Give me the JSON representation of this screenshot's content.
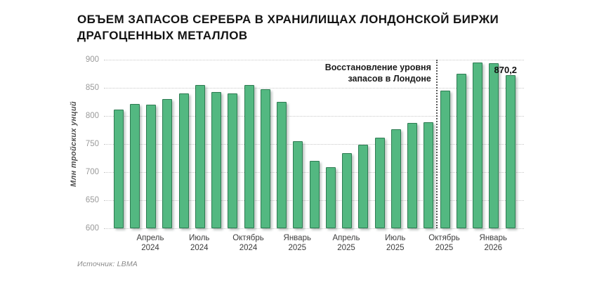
{
  "title": {
    "line1": "ОБЪЕМ ЗАПАСОВ СЕРЕБРА В ХРАНИЛИЩАХ ЛОНДОНСКОЙ БИРЖИ",
    "line2": "ДРАГОЦЕННЫХ МЕТАЛЛОВ"
  },
  "source": "Источник: LBMA",
  "colors": {
    "bar_fill": "#53b881",
    "bar_border": "#2e7b52",
    "gridline": "#c8c8c8",
    "divider": "#5a5a5a"
  },
  "chart_data": {
    "type": "bar",
    "title": "Объем запасов серебра в хранилищах лондонской биржи драгоценных металлов",
    "ylabel": "Млн тройских унций",
    "ylim": [
      600,
      900
    ],
    "yticks": [
      600,
      650,
      700,
      750,
      800,
      850,
      900
    ],
    "grid": "horizontal dotted",
    "legend": "none",
    "categories": [
      "2024-02",
      "2024-03",
      "2024-04",
      "2024-05",
      "2024-06",
      "2024-07",
      "2024-08",
      "2024-09",
      "2024-10",
      "2024-11",
      "2024-12",
      "2025-01",
      "2025-02",
      "2025-03",
      "2025-04",
      "2025-05",
      "2025-06",
      "2025-07",
      "2025-08",
      "2025-09",
      "2025-10",
      "2025-11",
      "2025-12",
      "2026-01",
      "2026-02"
    ],
    "values": [
      809,
      819,
      817,
      828,
      837,
      852,
      840,
      837,
      852,
      845,
      822,
      752,
      718,
      706,
      731,
      746,
      759,
      774,
      785,
      786,
      842,
      872,
      893,
      891,
      870.2
    ],
    "xticks": [
      {
        "index": 2,
        "line1": "Апрель",
        "line2": "2024"
      },
      {
        "index": 5,
        "line1": "Июль",
        "line2": "2024"
      },
      {
        "index": 8,
        "line1": "Октябрь",
        "line2": "2024"
      },
      {
        "index": 11,
        "line1": "Январь",
        "line2": "2025"
      },
      {
        "index": 14,
        "line1": "Апрель",
        "line2": "2025"
      },
      {
        "index": 17,
        "line1": "Июль",
        "line2": "2025"
      },
      {
        "index": 20,
        "line1": "Октябрь",
        "line2": "2025"
      },
      {
        "index": 23,
        "line1": "Январь",
        "line2": "2026"
      }
    ],
    "divider_before_index": 20,
    "annotation": {
      "line1": "Восстановление уровня",
      "line2": "запасов в Лондоне"
    },
    "last_value_label": "870,2"
  }
}
